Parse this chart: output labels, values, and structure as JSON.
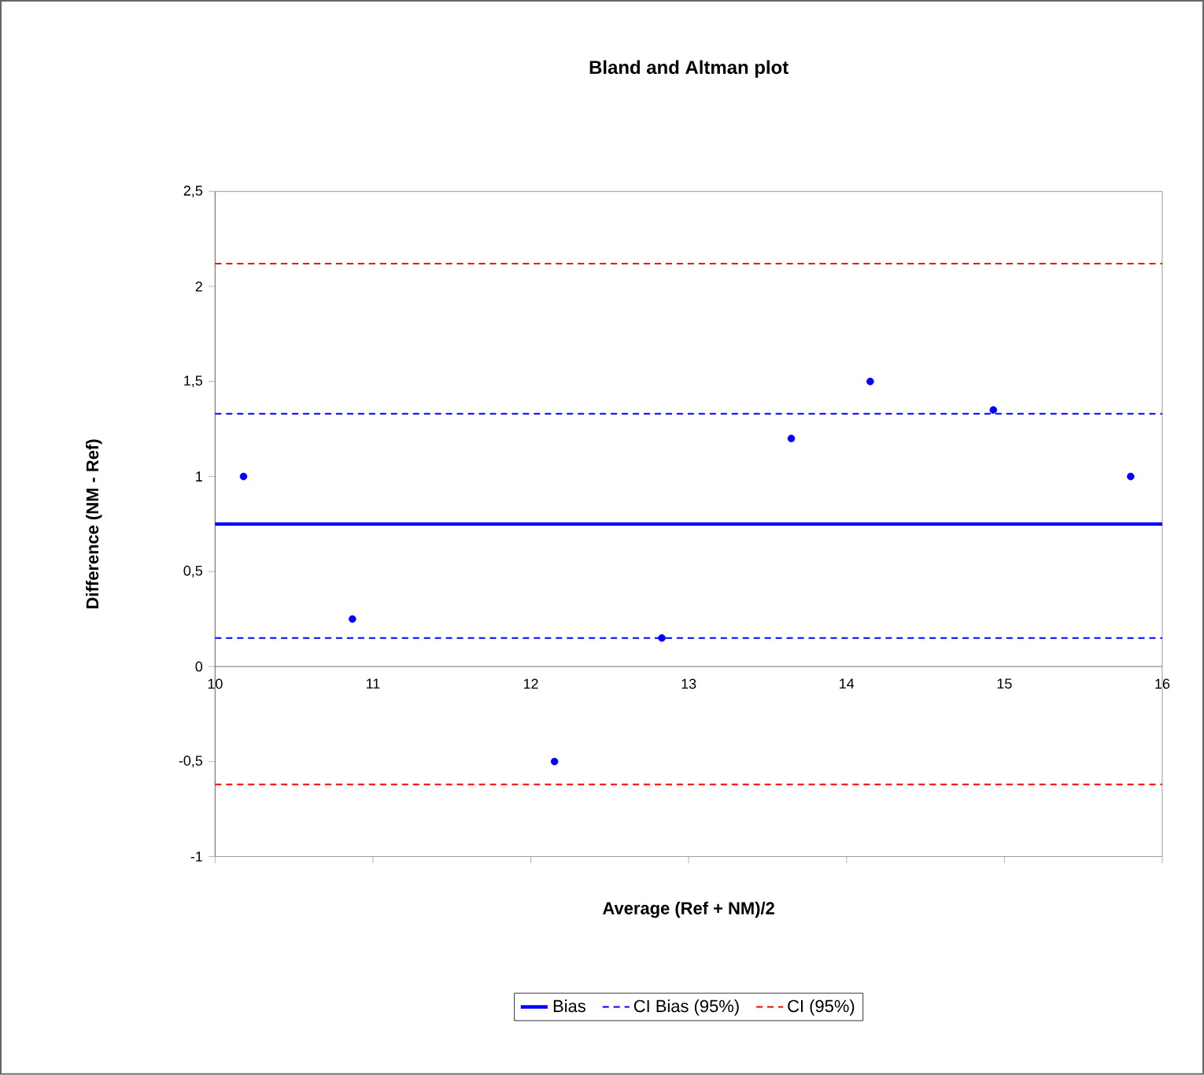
{
  "chart_data": {
    "type": "scatter",
    "title": "Bland and Altman plot",
    "xlabel": "Average (Ref + NM)/2",
    "ylabel": "Difference (NM - Ref)",
    "xlim": [
      10,
      16
    ],
    "xticks": [
      10,
      11,
      12,
      13,
      14,
      15,
      16
    ],
    "ylim": [
      -1,
      2.5
    ],
    "yticks": [
      {
        "value": -1,
        "label": "-1"
      },
      {
        "value": -0.5,
        "label": "-0,5"
      },
      {
        "value": 0,
        "label": "0"
      },
      {
        "value": 0.5,
        "label": "0,5"
      },
      {
        "value": 1,
        "label": "1"
      },
      {
        "value": 1.5,
        "label": "1,5"
      },
      {
        "value": 2,
        "label": "2"
      },
      {
        "value": 2.5,
        "label": "2,5"
      }
    ],
    "grid": false,
    "legend": "bottom",
    "series": [
      {
        "color": "#0000ff",
        "marker": "circle",
        "x": [
          10.18,
          10.87,
          12.15,
          12.83,
          13.65,
          14.15,
          14.93,
          15.8
        ],
        "values": [
          1.0,
          0.25,
          -0.5,
          0.15,
          1.2,
          1.5,
          1.35,
          1.0
        ]
      },
      {
        "type": "line",
        "name": "Bias",
        "color": "#0000ff",
        "line_style": "solid",
        "marker": "none",
        "x": [
          10,
          16
        ],
        "values": [
          0.75,
          0.75
        ]
      },
      {
        "type": "line",
        "name": "CI Bias (95%)",
        "color": "#0000ff",
        "line_style": "dashed",
        "marker": "none",
        "x": [
          10,
          16
        ],
        "values": [
          1.33,
          1.33
        ]
      },
      {
        "type": "line",
        "color": "#0000ff",
        "line_style": "dashed",
        "marker": "none",
        "x": [
          10,
          16
        ],
        "values": [
          0.15,
          0.15
        ]
      },
      {
        "type": "line",
        "name": "CI (95%)",
        "color": "#ff0000",
        "line_style": "dashed",
        "marker": "none",
        "x": [
          10,
          16
        ],
        "values": [
          2.12,
          2.12
        ]
      },
      {
        "type": "line",
        "color": "#ff0000",
        "line_style": "dashed",
        "marker": "none",
        "x": [
          10,
          16
        ],
        "values": [
          -0.62,
          -0.62
        ]
      }
    ]
  }
}
